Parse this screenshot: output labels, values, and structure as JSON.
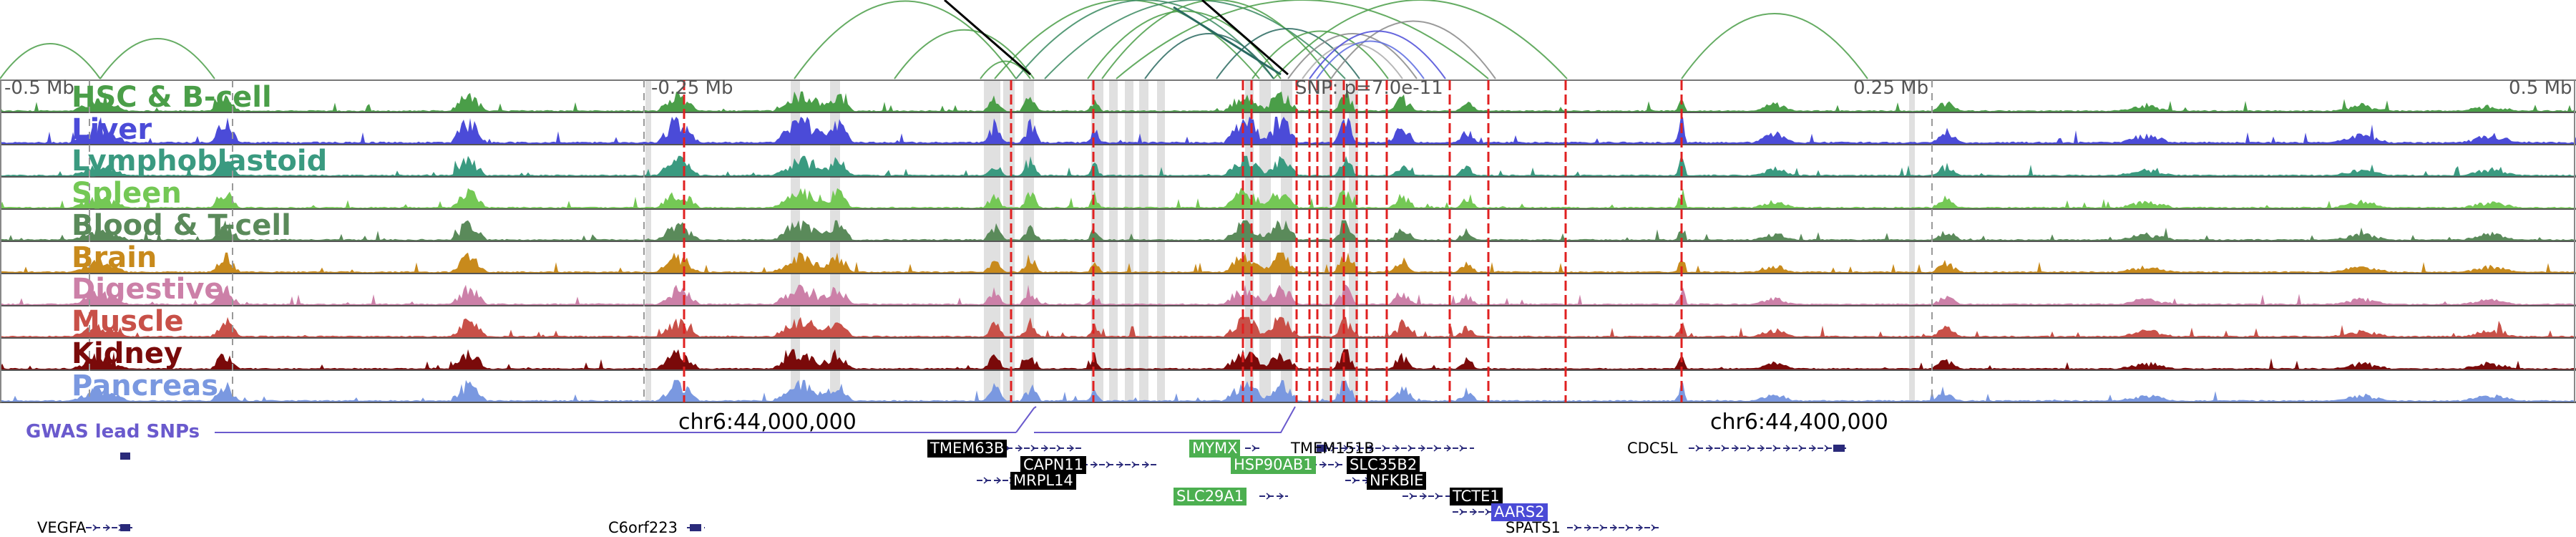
{
  "scale": {
    "left": "-0.5 Mb",
    "left_mid": "-0.25 Mb",
    "center": "SNP: p=7.0e-11",
    "right_mid": "0.25 Mb",
    "right": "0.5 Mb"
  },
  "tracks": [
    {
      "label": "HSC & B-cell",
      "color": "#4a9e48"
    },
    {
      "label": "Liver",
      "color": "#4b4bd8"
    },
    {
      "label": "Lymphoblastoid",
      "color": "#3a9a80"
    },
    {
      "label": "Spleen",
      "color": "#74c855"
    },
    {
      "label": "Blood & T-cell",
      "color": "#5a8a5a"
    },
    {
      "label": "Brain",
      "color": "#c88a1c"
    },
    {
      "label": "Digestive",
      "color": "#cc80a8"
    },
    {
      "label": "Muscle",
      "color": "#c85048"
    },
    {
      "label": "Kidney",
      "color": "#7a0a0a"
    },
    {
      "label": "Pancreas",
      "color": "#7a98e0"
    }
  ],
  "gwas_label": "GWAS lead SNPs",
  "gwas_color": "#6a5acd",
  "coords": [
    "chr6:44,000,000",
    "chr6:44,400,000"
  ],
  "genes": {
    "tmem63b": "TMEM63B",
    "capn11": "CAPN11",
    "mrpl14": "MRPL14",
    "mymx": "MYMX",
    "hsp90ab1": "HSP90AB1",
    "slc29a1": "SLC29A1",
    "tmem151b": "TMEM151B",
    "slc35b2": "SLC35B2",
    "nfkbie": "NFKBIE",
    "tcte1": "TCTE1",
    "aars2": "AARS2",
    "spats1": "SPATS1",
    "cdc5l": "CDC5L",
    "vegfa": "VEGFA",
    "c6orf223": "C6orf223"
  },
  "colors": {
    "highlight_black": "#000000",
    "highlight_green": "#4caf50",
    "highlight_blue": "#4a4ad6",
    "red_marker": "#e02020",
    "gray_band": "#e0e0e0",
    "gene_structure": "#2a2a7a"
  }
}
